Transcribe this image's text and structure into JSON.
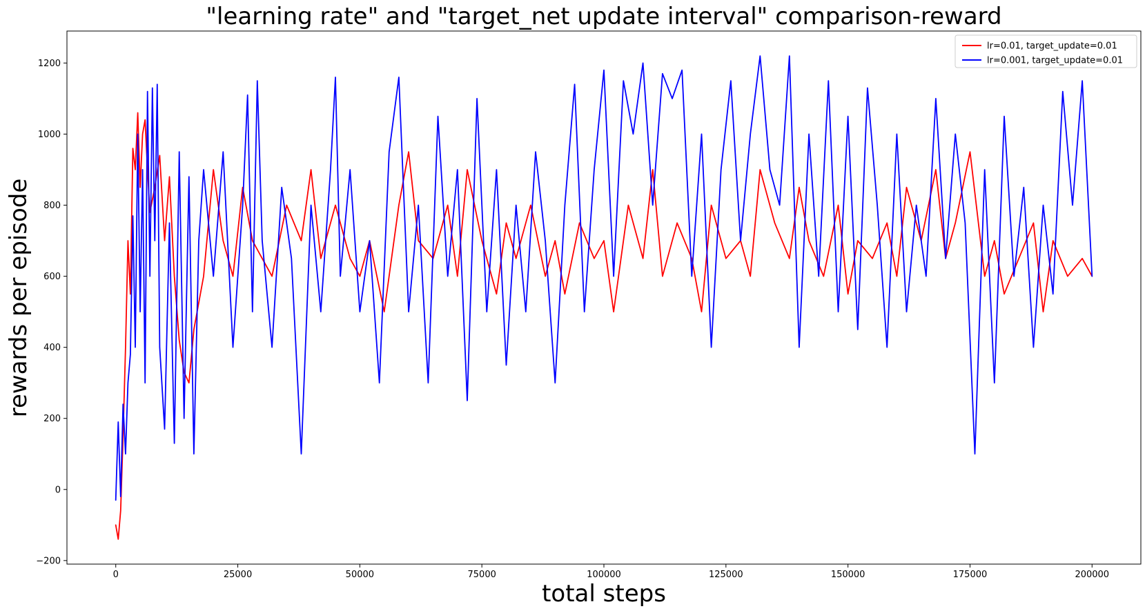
{
  "chart_data": {
    "type": "line",
    "title": "\"learning rate\" and \"target_net update interval\" comparison-reward",
    "xlabel": "total steps",
    "ylabel": "rewards per episode",
    "xlim": [
      -10000,
      210000
    ],
    "ylim": [
      -210,
      1290
    ],
    "x_ticks": [
      0,
      25000,
      50000,
      75000,
      100000,
      125000,
      150000,
      175000,
      200000
    ],
    "y_ticks": [
      -200,
      0,
      200,
      400,
      600,
      800,
      1000,
      1200
    ],
    "grid": false,
    "legend_position": "top-right",
    "series": [
      {
        "name": "lr=0.01, target_update=0.01",
        "color": "#ff0000",
        "x": [
          0,
          500,
          1000,
          1500,
          2000,
          2500,
          3000,
          3500,
          4000,
          4500,
          5000,
          5500,
          6000,
          6500,
          7000,
          8000,
          9000,
          10000,
          11000,
          12000,
          13000,
          14000,
          15000,
          16000,
          18000,
          20000,
          22000,
          24000,
          26000,
          28000,
          30000,
          32000,
          35000,
          38000,
          40000,
          42000,
          45000,
          48000,
          50000,
          52000,
          55000,
          58000,
          60000,
          62000,
          65000,
          68000,
          70000,
          72000,
          75000,
          78000,
          80000,
          82000,
          85000,
          88000,
          90000,
          92000,
          95000,
          98000,
          100000,
          102000,
          105000,
          108000,
          110000,
          112000,
          115000,
          118000,
          120000,
          122000,
          125000,
          128000,
          130000,
          132000,
          135000,
          138000,
          140000,
          142000,
          145000,
          148000,
          150000,
          152000,
          155000,
          158000,
          160000,
          162000,
          165000,
          168000,
          170000,
          172000,
          175000,
          178000,
          180000,
          182000,
          185000,
          188000,
          190000,
          192000,
          195000,
          198000,
          200000
        ],
        "y": [
          -100,
          -140,
          -60,
          150,
          400,
          700,
          550,
          960,
          900,
          1060,
          850,
          1000,
          1040,
          900,
          780,
          850,
          940,
          700,
          880,
          600,
          420,
          330,
          300,
          450,
          600,
          900,
          700,
          600,
          850,
          700,
          650,
          600,
          800,
          700,
          900,
          650,
          800,
          650,
          600,
          700,
          500,
          800,
          950,
          700,
          650,
          800,
          600,
          900,
          700,
          550,
          750,
          650,
          800,
          600,
          700,
          550,
          750,
          650,
          700,
          500,
          800,
          650,
          900,
          600,
          750,
          650,
          500,
          800,
          650,
          700,
          600,
          900,
          750,
          650,
          850,
          700,
          600,
          800,
          550,
          700,
          650,
          750,
          600,
          850,
          700,
          900,
          650,
          750,
          950,
          600,
          700,
          550,
          650,
          750,
          500,
          700,
          600,
          650,
          600
        ]
      },
      {
        "name": "lr=0.001, target_update=0.01",
        "color": "#0000ff",
        "x": [
          0,
          500,
          1000,
          1500,
          2000,
          2500,
          3000,
          3500,
          4000,
          4500,
          5000,
          5500,
          6000,
          6500,
          7000,
          7500,
          8000,
          8500,
          9000,
          10000,
          11000,
          12000,
          13000,
          14000,
          15000,
          16000,
          17000,
          18000,
          20000,
          22000,
          24000,
          26000,
          27000,
          28000,
          29000,
          30000,
          32000,
          34000,
          36000,
          38000,
          40000,
          42000,
          44000,
          45000,
          46000,
          48000,
          50000,
          52000,
          54000,
          56000,
          58000,
          60000,
          62000,
          64000,
          66000,
          68000,
          70000,
          72000,
          74000,
          76000,
          78000,
          80000,
          82000,
          84000,
          86000,
          88000,
          90000,
          92000,
          94000,
          96000,
          98000,
          100000,
          102000,
          104000,
          106000,
          108000,
          110000,
          112000,
          114000,
          116000,
          118000,
          120000,
          122000,
          124000,
          126000,
          128000,
          130000,
          132000,
          134000,
          136000,
          138000,
          140000,
          142000,
          144000,
          146000,
          148000,
          150000,
          152000,
          154000,
          156000,
          158000,
          160000,
          162000,
          164000,
          166000,
          168000,
          170000,
          172000,
          174000,
          176000,
          178000,
          180000,
          182000,
          184000,
          186000,
          188000,
          190000,
          192000,
          194000,
          196000,
          198000,
          200000
        ],
        "y": [
          -30,
          190,
          -20,
          240,
          100,
          300,
          380,
          770,
          400,
          1000,
          500,
          900,
          300,
          1120,
          600,
          1130,
          700,
          1140,
          400,
          170,
          750,
          130,
          950,
          200,
          880,
          100,
          700,
          900,
          600,
          950,
          400,
          800,
          1110,
          500,
          1150,
          700,
          400,
          850,
          650,
          100,
          800,
          500,
          900,
          1160,
          600,
          900,
          500,
          700,
          300,
          950,
          1160,
          500,
          800,
          300,
          1050,
          600,
          900,
          250,
          1100,
          500,
          900,
          350,
          800,
          500,
          950,
          700,
          300,
          800,
          1140,
          500,
          900,
          1180,
          600,
          1150,
          1000,
          1200,
          800,
          1170,
          1100,
          1180,
          600,
          1000,
          400,
          900,
          1150,
          700,
          1000,
          1220,
          900,
          800,
          1220,
          400,
          1000,
          600,
          1150,
          500,
          1050,
          450,
          1130,
          800,
          400,
          1000,
          500,
          800,
          600,
          1100,
          650,
          1000,
          750,
          100,
          900,
          300,
          1050,
          600,
          850,
          400,
          800,
          550,
          1120,
          800,
          1150,
          600
        ]
      }
    ]
  }
}
